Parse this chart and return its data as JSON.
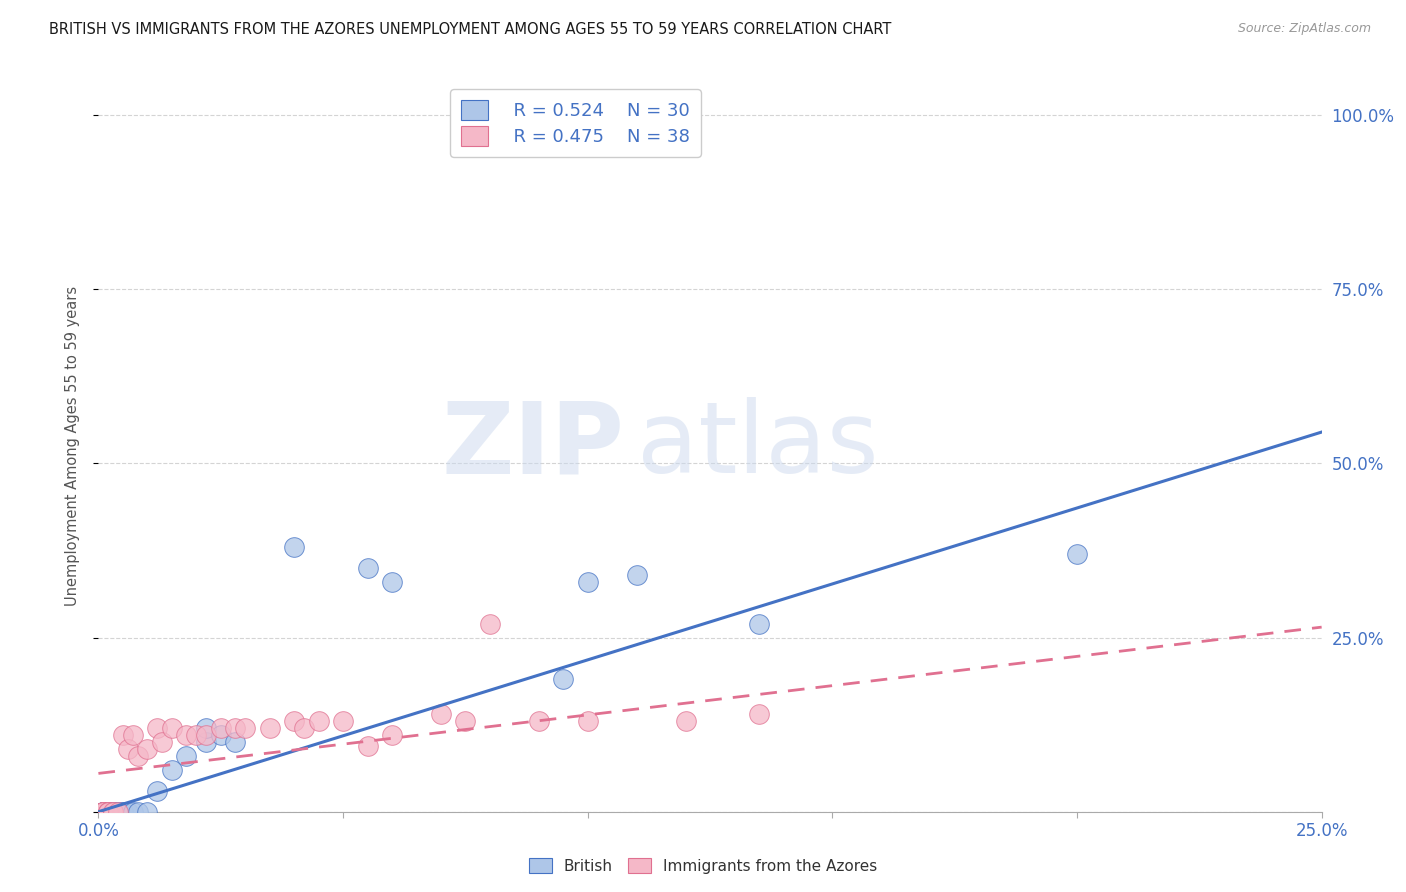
{
  "title": "BRITISH VS IMMIGRANTS FROM THE AZORES UNEMPLOYMENT AMONG AGES 55 TO 59 YEARS CORRELATION CHART",
  "source": "Source: ZipAtlas.com",
  "ylabel": "Unemployment Among Ages 55 to 59 years",
  "xlim": [
    0.0,
    0.25
  ],
  "ylim": [
    0.0,
    1.05
  ],
  "ytick_labels": [
    "",
    "25.0%",
    "50.0%",
    "75.0%",
    "100.0%"
  ],
  "ytick_values": [
    0.0,
    0.25,
    0.5,
    0.75,
    1.0
  ],
  "xtick_values": [
    0.0,
    0.05,
    0.1,
    0.15,
    0.2,
    0.25
  ],
  "xtick_labels": [
    "0.0%",
    "",
    "",
    "",
    "",
    "25.0%"
  ],
  "british_color": "#aec6e8",
  "azores_color": "#f5b8c8",
  "british_line_color": "#4472c4",
  "azores_line_color": "#e07090",
  "legend_r_british": "R = 0.524",
  "legend_n_british": "N = 30",
  "legend_r_azores": "R = 0.475",
  "legend_n_azores": "N = 38",
  "british_x": [
    0.001,
    0.001,
    0.001,
    0.002,
    0.002,
    0.003,
    0.003,
    0.004,
    0.004,
    0.005,
    0.005,
    0.006,
    0.007,
    0.008,
    0.01,
    0.012,
    0.015,
    0.018,
    0.022,
    0.022,
    0.025,
    0.028,
    0.04,
    0.055,
    0.06,
    0.095,
    0.1,
    0.11,
    0.135,
    0.2
  ],
  "british_y": [
    0.0,
    0.0,
    0.0,
    0.0,
    0.0,
    0.0,
    0.0,
    0.0,
    0.0,
    0.0,
    0.0,
    0.0,
    0.0,
    0.0,
    0.0,
    0.03,
    0.06,
    0.08,
    0.1,
    0.12,
    0.11,
    0.1,
    0.38,
    0.35,
    0.33,
    0.19,
    0.33,
    0.34,
    0.27,
    0.37
  ],
  "azores_x": [
    0.001,
    0.001,
    0.001,
    0.001,
    0.002,
    0.002,
    0.002,
    0.003,
    0.003,
    0.004,
    0.005,
    0.006,
    0.007,
    0.008,
    0.01,
    0.012,
    0.013,
    0.015,
    0.018,
    0.02,
    0.022,
    0.025,
    0.028,
    0.03,
    0.035,
    0.04,
    0.042,
    0.045,
    0.05,
    0.055,
    0.06,
    0.07,
    0.075,
    0.08,
    0.09,
    0.1,
    0.12,
    0.135
  ],
  "azores_y": [
    0.0,
    0.0,
    0.0,
    0.0,
    0.0,
    0.0,
    0.0,
    0.0,
    0.0,
    0.0,
    0.11,
    0.09,
    0.11,
    0.08,
    0.09,
    0.12,
    0.1,
    0.12,
    0.11,
    0.11,
    0.11,
    0.12,
    0.12,
    0.12,
    0.12,
    0.13,
    0.12,
    0.13,
    0.13,
    0.095,
    0.11,
    0.14,
    0.13,
    0.27,
    0.13,
    0.13,
    0.13,
    0.14
  ],
  "british_line_x0": 0.0,
  "british_line_y0": 0.0,
  "british_line_x1": 0.25,
  "british_line_y1": 0.545,
  "azores_line_x0": 0.0,
  "azores_line_y0": 0.055,
  "azores_line_x1": 0.25,
  "azores_line_y1": 0.265,
  "watermark_zip": "ZIP",
  "watermark_atlas": "atlas",
  "background_color": "#ffffff",
  "grid_color": "#d0d0d0",
  "tick_color": "#4472c4",
  "label_color": "#555555"
}
